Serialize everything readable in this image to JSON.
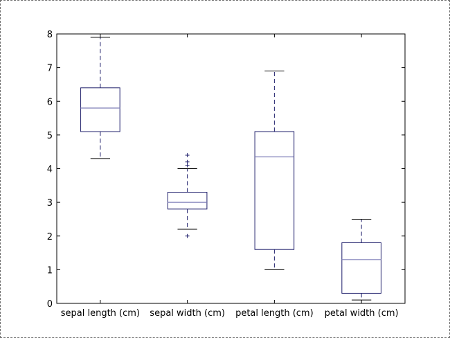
{
  "chart_data": {
    "type": "box",
    "categories": [
      "sepal length (cm)",
      "sepal width (cm)",
      "petal length (cm)",
      "petal width (cm)"
    ],
    "boxes": [
      {
        "whisker_low": 4.3,
        "q1": 5.1,
        "median": 5.8,
        "q3": 6.4,
        "whisker_high": 7.9,
        "outliers": []
      },
      {
        "whisker_low": 2.2,
        "q1": 2.8,
        "median": 3.0,
        "q3": 3.3,
        "whisker_high": 4.0,
        "outliers": [
          2.0,
          4.1,
          4.2,
          4.4
        ]
      },
      {
        "whisker_low": 1.0,
        "q1": 1.6,
        "median": 4.35,
        "q3": 5.1,
        "whisker_high": 6.9,
        "outliers": []
      },
      {
        "whisker_low": 0.1,
        "q1": 0.3,
        "median": 1.3,
        "q3": 1.8,
        "whisker_high": 2.5,
        "outliers": []
      }
    ],
    "y_ticks": [
      0,
      1,
      2,
      3,
      4,
      5,
      6,
      7,
      8
    ],
    "ylim": [
      0,
      8
    ],
    "title": "",
    "xlabel": "",
    "ylabel": "",
    "grid": false,
    "colors": {
      "box": "#1f1f6b",
      "median": "#7f7fb8",
      "whisker": "#1f1f6b",
      "axis": "#000000"
    }
  }
}
